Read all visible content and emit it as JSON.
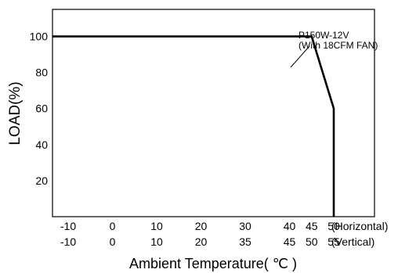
{
  "chart_data": {
    "type": "line",
    "series": [
      {
        "name": "P150W-12V",
        "x": [
          -10,
          45,
          50,
          50
        ],
        "y": [
          100,
          100,
          60,
          0
        ]
      }
    ],
    "annotation_line1": "P150W-12V",
    "annotation_line2": "(With 18CFM FAN)",
    "xlim": [
      -10,
      50
    ],
    "ylim": [
      0,
      115
    ],
    "yticks": [
      "20",
      "40",
      "60",
      "80",
      "100"
    ],
    "xticks_horizontal": [
      "-10",
      "0",
      "10",
      "20",
      "30",
      "40",
      "45",
      "50"
    ],
    "xticks_vertical": [
      "-10",
      "0",
      "10",
      "20",
      "35",
      "45",
      "50",
      "55"
    ],
    "horizontal_label": "(Horizontal)",
    "vertical_label": "(Vertical)",
    "ylabel": "LOAD(%)",
    "xlabel": "Ambient Temperature( ℃ )",
    "grid": false,
    "line_color": "#000000"
  }
}
